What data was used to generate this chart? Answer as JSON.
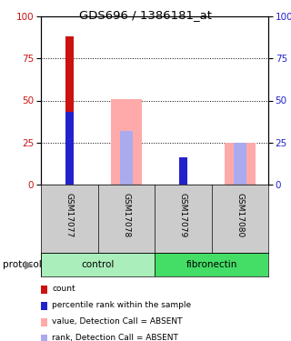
{
  "title": "GDS696 / 1386181_at",
  "samples": [
    "GSM17077",
    "GSM17078",
    "GSM17079",
    "GSM17080"
  ],
  "red_bars": [
    88,
    0,
    15,
    0
  ],
  "blue_bars": [
    43,
    0,
    16,
    0
  ],
  "pink_bars": [
    0,
    51,
    0,
    25
  ],
  "lightblue_bars": [
    0,
    32,
    0,
    25
  ],
  "ylim": [
    0,
    100
  ],
  "yticks": [
    0,
    25,
    50,
    75,
    100
  ],
  "color_red": "#cc1111",
  "color_blue": "#2222cc",
  "color_pink": "#ffaaaa",
  "color_lightblue": "#aaaaee",
  "color_control": "#aaeebb",
  "color_fibronectin": "#44dd66",
  "color_gray_bg": "#cccccc",
  "legend_items": [
    {
      "label": "count",
      "color": "#cc1111"
    },
    {
      "label": "percentile rank within the sample",
      "color": "#2222cc"
    },
    {
      "label": "value, Detection Call = ABSENT",
      "color": "#ffaaaa"
    },
    {
      "label": "rank, Detection Call = ABSENT",
      "color": "#aaaaee"
    }
  ]
}
